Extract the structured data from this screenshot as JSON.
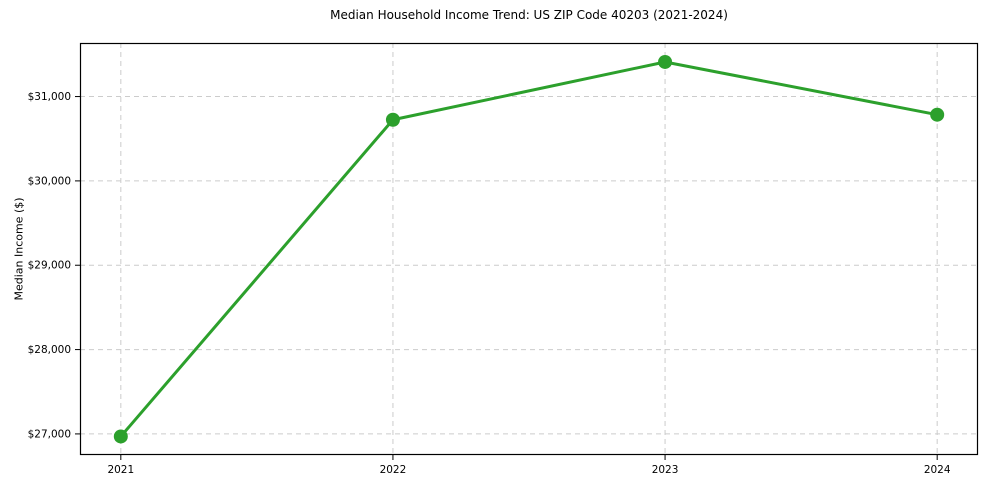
{
  "chart_data": {
    "type": "line",
    "title": "Median Household Income Trend: US ZIP Code 40203 (2021-2024)",
    "xlabel": "",
    "ylabel": "Median Income ($)",
    "x": [
      2021,
      2022,
      2023,
      2024
    ],
    "values": [
      26970,
      30725,
      31410,
      30785
    ],
    "xticks": [
      2021,
      2022,
      2023,
      2024
    ],
    "xtick_labels": [
      "2021",
      "2022",
      "2023",
      "2024"
    ],
    "yticks": [
      27000,
      28000,
      29000,
      30000,
      31000
    ],
    "ytick_labels": [
      "$27,000",
      "$28,000",
      "$29,000",
      "$30,000",
      "$31,000"
    ],
    "xlim": [
      2020.85,
      2024.15
    ],
    "ylim": [
      26750,
      31635
    ],
    "grid": "dashed",
    "legend": "none",
    "line_color": "#2ca02c",
    "marker": "circle",
    "grid_color": "#cccccc",
    "spine_color": "#000000",
    "background": "#ffffff"
  }
}
